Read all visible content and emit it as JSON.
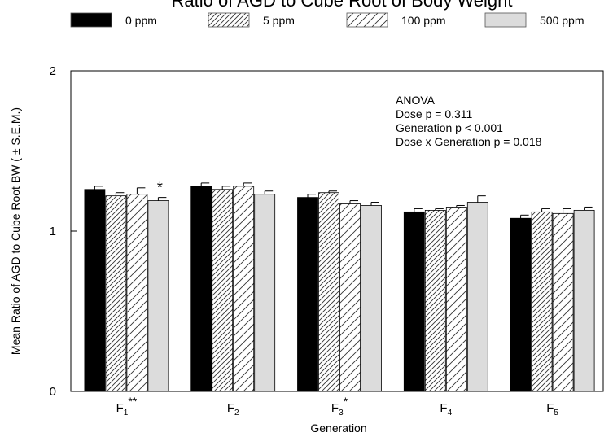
{
  "chart_data": {
    "type": "bar",
    "title": "Ratio of AGD to Cube Root of Body Weight",
    "xlabel": "Generation",
    "ylabel": "Mean Ratio of AGD to Cube Root BW   ( ± S.E.M.)",
    "ylim": [
      0,
      2
    ],
    "yticks": [
      "0",
      "1",
      "2"
    ],
    "grid": false,
    "legend_position": "top",
    "categories": [
      {
        "base": "F",
        "sub": "1",
        "mark": "**"
      },
      {
        "base": "F",
        "sub": "2",
        "mark": ""
      },
      {
        "base": "F",
        "sub": "3",
        "mark": "*"
      },
      {
        "base": "F",
        "sub": "4",
        "mark": ""
      },
      {
        "base": "F",
        "sub": "5",
        "mark": ""
      }
    ],
    "series": [
      {
        "name": "0 ppm",
        "fill": "solid",
        "color": "#000000",
        "values": [
          1.26,
          1.28,
          1.21,
          1.12,
          1.08
        ],
        "errors": [
          0.02,
          0.02,
          0.02,
          0.02,
          0.02
        ]
      },
      {
        "name": "5 ppm",
        "fill": "hatch",
        "color": "#ffffff",
        "values": [
          1.22,
          1.26,
          1.24,
          1.13,
          1.12
        ],
        "errors": [
          0.02,
          0.02,
          0.01,
          0.01,
          0.02
        ]
      },
      {
        "name": "100 ppm",
        "fill": "hatch-wide",
        "color": "#ffffff",
        "values": [
          1.23,
          1.28,
          1.17,
          1.15,
          1.11
        ],
        "errors": [
          0.04,
          0.02,
          0.02,
          0.01,
          0.03
        ]
      },
      {
        "name": "500 ppm",
        "fill": "solid",
        "color": "#dcdcdc",
        "values": [
          1.19,
          1.23,
          1.16,
          1.18,
          1.13
        ],
        "errors": [
          0.02,
          0.02,
          0.02,
          0.04,
          0.02
        ]
      }
    ],
    "bar_annotations": [
      {
        "series": 3,
        "category": 0,
        "text": "*"
      }
    ],
    "annotation": {
      "lines": [
        "ANOVA",
        "Dose p = 0.311",
        "Generation p < 0.001",
        "Dose x Generation p = 0.018"
      ]
    }
  }
}
